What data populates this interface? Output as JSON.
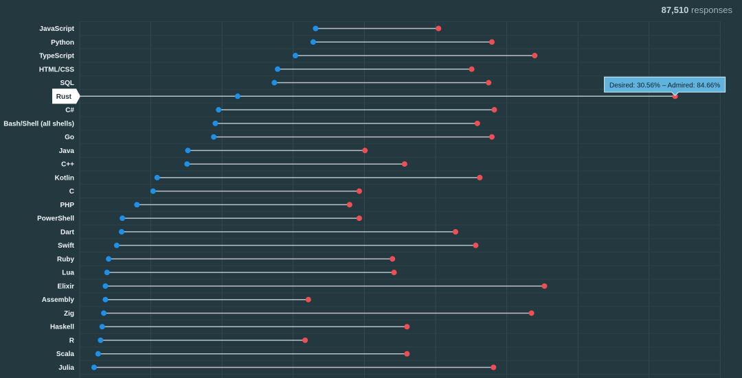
{
  "header": {
    "responses_count": "87,510",
    "responses_label": "responses"
  },
  "colors": {
    "background": "#243840",
    "desired": "#1e90e8",
    "admired": "#ee4f55",
    "connector": "#b9c3c7",
    "tooltip_bg": "#5fb3dc",
    "highlight_label_bg": "#ffffff"
  },
  "tooltip": {
    "category": "Rust",
    "text": "Desired: 30.56% – Admired: 84.66%"
  },
  "chart_data": {
    "type": "dumbbell",
    "orientation": "horizontal",
    "title": "",
    "xlabel": "",
    "ylabel": "",
    "xlim": [
      10,
      92
    ],
    "grid": true,
    "legend": "none",
    "highlighted": "Rust",
    "categories": [
      "JavaScript",
      "Python",
      "TypeScript",
      "HTML/CSS",
      "SQL",
      "Rust",
      "C#",
      "Bash/Shell (all shells)",
      "Go",
      "Java",
      "C++",
      "Kotlin",
      "C",
      "PHP",
      "PowerShell",
      "Dart",
      "Swift",
      "Ruby",
      "Lua",
      "Elixir",
      "Assembly",
      "Zig",
      "Haskell",
      "R",
      "Scala",
      "Julia"
    ],
    "series": [
      {
        "name": "Desired",
        "values": [
          40.2,
          39.9,
          37.7,
          35.5,
          35.1,
          30.56,
          28.2,
          27.8,
          27.6,
          24.4,
          24.3,
          20.6,
          20.1,
          18.1,
          16.3,
          16.2,
          15.6,
          14.6,
          14.4,
          14.2,
          14.2,
          14.0,
          13.8,
          13.6,
          13.3,
          12.8
        ]
      },
      {
        "name": "Admired",
        "values": [
          55.4,
          62.0,
          67.3,
          59.5,
          61.6,
          84.66,
          62.3,
          60.2,
          62.0,
          46.3,
          51.2,
          60.5,
          45.6,
          44.4,
          45.6,
          57.5,
          60.0,
          49.7,
          49.9,
          68.5,
          39.3,
          66.9,
          51.5,
          38.9,
          51.5,
          62.2
        ]
      }
    ]
  }
}
